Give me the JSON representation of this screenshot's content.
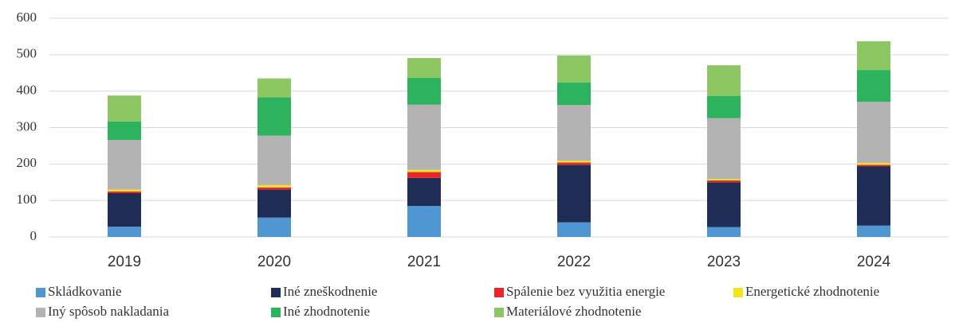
{
  "chart_data": {
    "type": "stacked_bar",
    "categories": [
      "2019",
      "2020",
      "2021",
      "2022",
      "2023",
      "2024"
    ],
    "series": [
      {
        "name": "Skládkovanie",
        "color": "#4f96d2",
        "values": [
          28,
          53,
          85,
          40,
          27,
          31
        ]
      },
      {
        "name": "Iné zneškodnenie",
        "color": "#1f2d56",
        "values": [
          92,
          77,
          77,
          158,
          123,
          163
        ]
      },
      {
        "name": "Spálenie bez využitia energie",
        "color": "#e8262b",
        "values": [
          5,
          6,
          16,
          6,
          5,
          4
        ]
      },
      {
        "name": "Energetické zhodnotenie",
        "color": "#f0e51e",
        "values": [
          5,
          6,
          6,
          5,
          4,
          5
        ]
      },
      {
        "name": "Iný spôsob nakladania",
        "color": "#b3b3b3",
        "values": [
          136,
          136,
          179,
          153,
          167,
          168
        ]
      },
      {
        "name": "Iné zhodnotenie",
        "color": "#2db35d",
        "values": [
          51,
          105,
          74,
          62,
          61,
          87
        ]
      },
      {
        "name": "Materiálové zhodnotenie",
        "color": "#8cc763",
        "values": [
          71,
          52,
          54,
          74,
          84,
          79
        ]
      }
    ],
    "ylim": [
      0,
      600
    ],
    "yticks": [
      0,
      100,
      200,
      300,
      400,
      500,
      600
    ],
    "grid": true
  }
}
